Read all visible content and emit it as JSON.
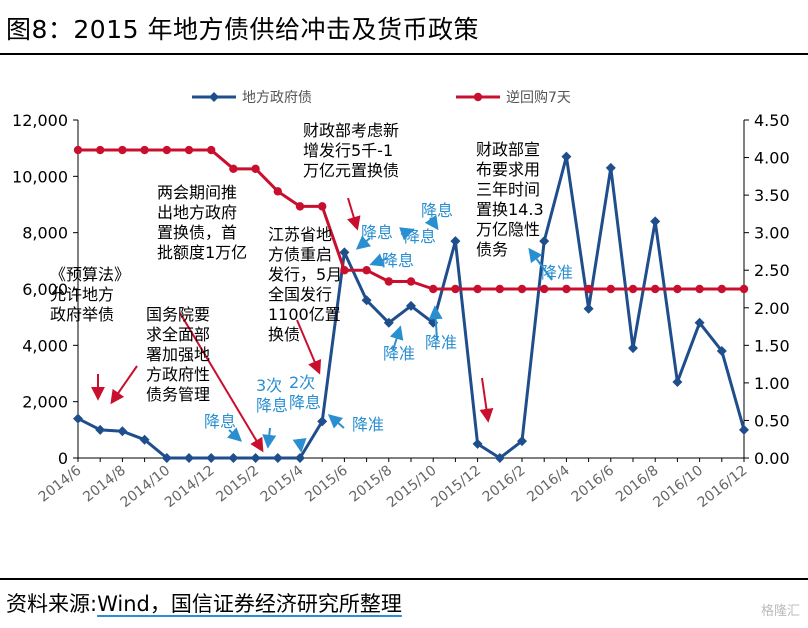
{
  "title": "图8：2015 年地方债供给冲击及货币政策",
  "source": {
    "prefix": "资料来源:",
    "wind": "Wind",
    "rest": "，国信证券经济研究所整理"
  },
  "watermark": "格隆汇",
  "colors": {
    "bond": "#1f4e8c",
    "repo": "#c8102e",
    "note_red": "#c8102e",
    "note_blue": "#2a8fd0"
  },
  "chart_data": {
    "type": "line",
    "x": [
      "2014/6",
      "2014/7",
      "2014/8",
      "2014/9",
      "2014/10",
      "2014/11",
      "2014/12",
      "2015/1",
      "2015/2",
      "2015/3",
      "2015/4",
      "2015/5",
      "2015/6",
      "2015/7",
      "2015/8",
      "2015/9",
      "2015/10",
      "2015/11",
      "2015/12",
      "2016/1",
      "2016/2",
      "2016/3",
      "2016/4",
      "2016/5",
      "2016/6",
      "2016/7",
      "2016/8",
      "2016/9",
      "2016/10",
      "2016/11",
      "2016/12"
    ],
    "xticks": [
      "2014/6",
      "2014/8",
      "2014/10",
      "2014/12",
      "2015/2",
      "2015/4",
      "2015/6",
      "2015/8",
      "2015/10",
      "2015/12",
      "2016/2",
      "2016/4",
      "2016/6",
      "2016/8",
      "2016/10",
      "2016/12"
    ],
    "series": [
      {
        "name": "地方政府债",
        "axis": "left",
        "color": "#1f4e8c",
        "marker": "diamond",
        "values": [
          1400,
          1000,
          950,
          650,
          0,
          0,
          0,
          0,
          0,
          0,
          0,
          1300,
          7300,
          5600,
          4800,
          5400,
          4800,
          7700,
          500,
          0,
          600,
          7700,
          10700,
          5300,
          10300,
          3900,
          8400,
          2700,
          4800,
          3800,
          1000
        ]
      },
      {
        "name": "逆回购7天",
        "axis": "right",
        "color": "#c8102e",
        "marker": "circle",
        "values": [
          4.1,
          4.1,
          4.1,
          4.1,
          4.1,
          4.1,
          4.1,
          3.85,
          3.85,
          3.55,
          3.35,
          3.35,
          2.5,
          2.5,
          2.35,
          2.35,
          2.25,
          2.25,
          2.25,
          2.25,
          2.25,
          2.25,
          2.25,
          2.25,
          2.25,
          2.25,
          2.25,
          2.25,
          2.25,
          2.25,
          2.25
        ]
      }
    ],
    "yleft": {
      "ylim": [
        0,
        12000
      ],
      "ticks": [
        "0",
        "2,000",
        "4,000",
        "6,000",
        "8,000",
        "10,000",
        "12,000"
      ]
    },
    "yright": {
      "ylim": [
        0,
        4.5
      ],
      "ticks": [
        "0.00",
        "0.50",
        "1.00",
        "1.50",
        "2.00",
        "2.50",
        "3.00",
        "3.50",
        "4.00",
        "4.50"
      ]
    },
    "legend_position": "top",
    "annotations": [
      {
        "lines": [
          "《预算法》",
          "允许地方",
          "政府举债"
        ],
        "color": "#000000"
      },
      {
        "lines": [
          "国务院要",
          "求全面部",
          "署加强地",
          "方政府性",
          "债务管理"
        ],
        "color": "#000000"
      },
      {
        "lines": [
          "两会期间推",
          "出地方政府",
          "置换债，首",
          "批额度1万亿"
        ],
        "color": "#000000"
      },
      {
        "lines": [
          "财政部考虑新",
          "增发行5千-1",
          "万亿元置换债"
        ],
        "color": "#000000"
      },
      {
        "lines": [
          "江苏省地",
          "方债重启",
          "发行，5月",
          "全国发行",
          "1100亿置",
          "换债"
        ],
        "color": "#000000"
      },
      {
        "lines": [
          "财政部宣",
          "布要求用",
          "三年时间",
          "置换14.3",
          "万亿隐性",
          "债务"
        ],
        "color": "#000000"
      },
      {
        "lines": [
          "降息"
        ],
        "color": "#2a8fd0"
      },
      {
        "lines": [
          "3次",
          "降息"
        ],
        "color": "#2a8fd0"
      },
      {
        "lines": [
          "2次",
          "降息"
        ],
        "color": "#2a8fd0"
      },
      {
        "lines": [
          "降准"
        ],
        "color": "#2a8fd0"
      },
      {
        "lines": [
          "降息"
        ],
        "color": "#2a8fd0"
      },
      {
        "lines": [
          "降息"
        ],
        "color": "#2a8fd0"
      },
      {
        "lines": [
          "降息"
        ],
        "color": "#2a8fd0"
      },
      {
        "lines": [
          "降息"
        ],
        "color": "#2a8fd0"
      },
      {
        "lines": [
          "降准"
        ],
        "color": "#2a8fd0"
      },
      {
        "lines": [
          "降准"
        ],
        "color": "#2a8fd0"
      },
      {
        "lines": [
          "降准"
        ],
        "color": "#2a8fd0"
      }
    ]
  }
}
